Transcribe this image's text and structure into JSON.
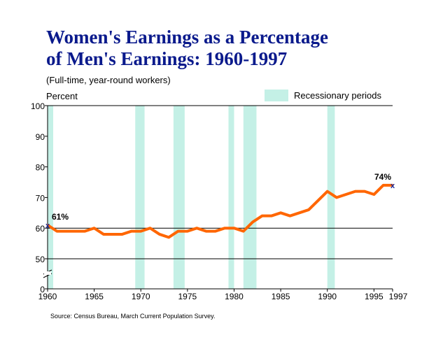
{
  "title_line1": "Women's Earnings as a Percentage",
  "title_line2": "of Men's Earnings:  1960-1997",
  "subtitle": "(Full-time, year-round workers)",
  "source": "Source:  Census Bureau, March Current Population Survey.",
  "colors": {
    "title": "#0a1a8c",
    "line": "#ff6600",
    "recession": "#c4f0e6",
    "marker": "#1a2a9c"
  },
  "chart_data": {
    "type": "line",
    "title": "Women's Earnings as a Percentage of Men's Earnings: 1960-1997",
    "ylabel": "Percent",
    "xlabel": "",
    "ylim": [
      0,
      100
    ],
    "xlim": [
      1960,
      1997
    ],
    "y_ticks": [
      "0",
      "50",
      "60",
      "70",
      "80",
      "90",
      "100"
    ],
    "x_ticks": [
      "1960",
      "1965",
      "1970",
      "1975",
      "1980",
      "1985",
      "1990",
      "1995",
      "1997"
    ],
    "legend": {
      "label": "Recessionary periods",
      "position": "top-right"
    },
    "recessions": [
      [
        1960,
        1960.6
      ],
      [
        1969.4,
        1970.4
      ],
      [
        1973.5,
        1974.7
      ],
      [
        1979.4,
        1980
      ],
      [
        1981,
        1982.4
      ],
      [
        1990,
        1990.8
      ]
    ],
    "series": [
      {
        "name": "Women's earnings as % of men's",
        "x": [
          1960,
          1961,
          1962,
          1963,
          1964,
          1965,
          1966,
          1967,
          1968,
          1969,
          1970,
          1971,
          1972,
          1973,
          1974,
          1975,
          1976,
          1977,
          1978,
          1979,
          1980,
          1981,
          1982,
          1983,
          1984,
          1985,
          1986,
          1987,
          1988,
          1989,
          1990,
          1991,
          1992,
          1993,
          1994,
          1995,
          1996,
          1997
        ],
        "values": [
          61,
          59,
          59,
          59,
          59,
          60,
          58,
          58,
          58,
          59,
          59,
          60,
          58,
          57,
          59,
          59,
          60,
          59,
          59,
          60,
          60,
          59,
          62,
          64,
          64,
          65,
          64,
          65,
          66,
          69,
          72,
          70,
          71,
          72,
          72,
          71,
          74,
          74
        ]
      }
    ],
    "annotations": [
      {
        "x": 1960,
        "y": 61,
        "text": "61%"
      },
      {
        "x": 1997,
        "y": 74,
        "text": "74%"
      }
    ]
  }
}
